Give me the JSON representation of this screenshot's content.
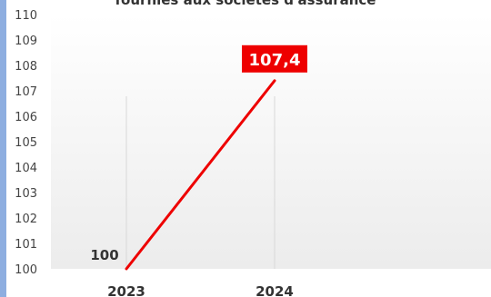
{
  "chart_data": {
    "type": "line",
    "title": "fournies aux sociétés d'assurance",
    "xlabel": "",
    "ylabel": "",
    "categories": [
      "2023",
      "2024"
    ],
    "series": [
      {
        "values": [
          100,
          107.4
        ],
        "data_labels": [
          "100",
          "107,4"
        ],
        "color": "#ee0000"
      }
    ],
    "ylim": [
      100,
      110
    ],
    "yticks": [
      "100",
      "101",
      "102",
      "103",
      "104",
      "105",
      "106",
      "107",
      "108",
      "109",
      "110"
    ],
    "grid": "vertical",
    "background_gradient": [
      "#ffffff",
      "#ececec"
    ],
    "label_box_color": "#ee0000"
  }
}
